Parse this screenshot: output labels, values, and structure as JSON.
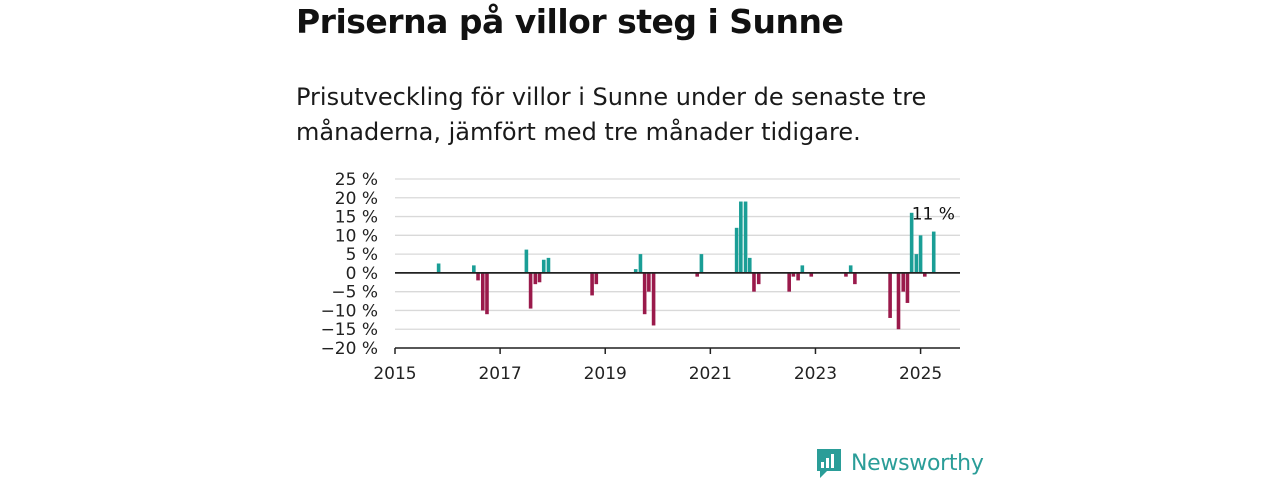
{
  "title": "Priserna på villor steg i Sunne",
  "subtitle": "Prisutveckling för villor i Sunne under de senaste tre månaderna, jämfört med tre månader tidigare.",
  "brand": {
    "name": "Newsworthy",
    "icon": "newsworthy-logo-icon"
  },
  "colors": {
    "positive": "#1a9e96",
    "negative": "#9a1a4b",
    "grid": "#d9d9d9",
    "axis": "#222222",
    "brand": "#2a9d98"
  },
  "chart_data": {
    "type": "bar",
    "title": "Priserna på villor steg i Sunne",
    "xlabel": "",
    "ylabel": "",
    "xlim": [
      2015,
      2025.75
    ],
    "ylim": [
      -20,
      25
    ],
    "x_ticks": [
      2015,
      2017,
      2019,
      2021,
      2023,
      2025
    ],
    "x_tick_labels": [
      "2015",
      "2017",
      "2019",
      "2021",
      "2023",
      "2025"
    ],
    "y_ticks": [
      25,
      20,
      15,
      10,
      5,
      0,
      -5,
      -10,
      -15,
      -20
    ],
    "y_tick_labels": [
      "25 %",
      "20 %",
      "15 %",
      "10 %",
      "5 %",
      "0 %",
      "−5 %",
      "−10 %",
      "−15 %",
      "−20 %"
    ],
    "grid": true,
    "annotation": {
      "text": "11 %",
      "x": 2025.25,
      "y": 11
    },
    "points": [
      {
        "x": 2015.83,
        "y": 2.5
      },
      {
        "x": 2016.5,
        "y": 2.0
      },
      {
        "x": 2016.58,
        "y": -2.0
      },
      {
        "x": 2016.67,
        "y": -10.0
      },
      {
        "x": 2016.75,
        "y": -11.0
      },
      {
        "x": 2017.5,
        "y": 6.2
      },
      {
        "x": 2017.58,
        "y": -9.5
      },
      {
        "x": 2017.67,
        "y": -3.0
      },
      {
        "x": 2017.75,
        "y": -2.5
      },
      {
        "x": 2017.83,
        "y": 3.5
      },
      {
        "x": 2017.92,
        "y": 4.0
      },
      {
        "x": 2018.75,
        "y": -6.0
      },
      {
        "x": 2018.83,
        "y": -3.0
      },
      {
        "x": 2019.58,
        "y": 1.0
      },
      {
        "x": 2019.67,
        "y": 5.0
      },
      {
        "x": 2019.75,
        "y": -11.0
      },
      {
        "x": 2019.83,
        "y": -5.0
      },
      {
        "x": 2019.92,
        "y": -14.0
      },
      {
        "x": 2020.75,
        "y": -1.0
      },
      {
        "x": 2020.83,
        "y": 5.0
      },
      {
        "x": 2021.5,
        "y": 12.0
      },
      {
        "x": 2021.58,
        "y": 19.0
      },
      {
        "x": 2021.67,
        "y": 19.0
      },
      {
        "x": 2021.75,
        "y": 4.0
      },
      {
        "x": 2021.83,
        "y": -5.0
      },
      {
        "x": 2021.92,
        "y": -3.0
      },
      {
        "x": 2022.5,
        "y": -5.0
      },
      {
        "x": 2022.58,
        "y": -1.0
      },
      {
        "x": 2022.67,
        "y": -2.0
      },
      {
        "x": 2022.75,
        "y": 2.0
      },
      {
        "x": 2022.92,
        "y": -1.0
      },
      {
        "x": 2023.58,
        "y": -1.0
      },
      {
        "x": 2023.67,
        "y": 2.0
      },
      {
        "x": 2023.75,
        "y": -3.0
      },
      {
        "x": 2024.42,
        "y": -12.0
      },
      {
        "x": 2024.58,
        "y": -15.0
      },
      {
        "x": 2024.67,
        "y": -5.0
      },
      {
        "x": 2024.75,
        "y": -8.0
      },
      {
        "x": 2024.83,
        "y": 16.0
      },
      {
        "x": 2024.92,
        "y": 5.0
      },
      {
        "x": 2025.0,
        "y": 10.0
      },
      {
        "x": 2025.08,
        "y": -1.0
      },
      {
        "x": 2025.25,
        "y": 11.0
      }
    ]
  }
}
